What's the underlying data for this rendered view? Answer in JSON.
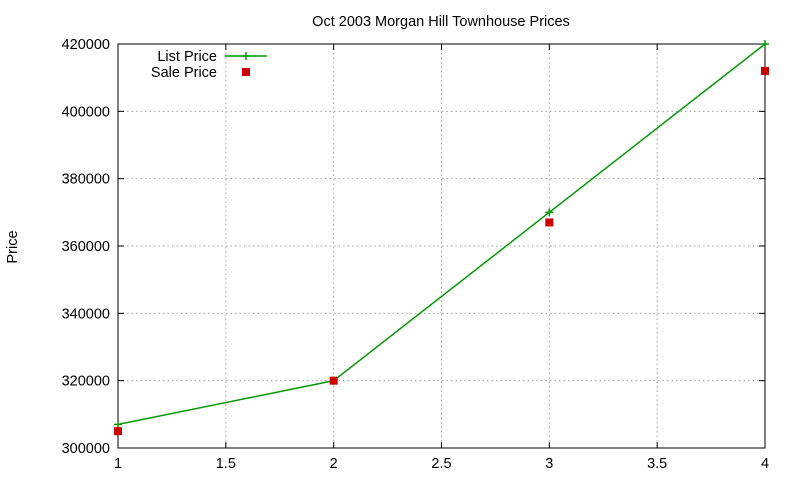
{
  "chart_data": {
    "type": "line",
    "title": "Oct 2003 Morgan Hill Townhouse Prices",
    "xlabel": "",
    "ylabel": "Price",
    "xlim": [
      1,
      4
    ],
    "ylim": [
      300000,
      420000
    ],
    "xticks": [
      1,
      1.5,
      2,
      2.5,
      3,
      3.5,
      4
    ],
    "xtick_labels": [
      "1",
      "1.5",
      "2",
      "2.5",
      "3",
      "3.5",
      "4"
    ],
    "yticks": [
      300000,
      320000,
      340000,
      360000,
      380000,
      400000,
      420000
    ],
    "ytick_labels": [
      "300000",
      "320000",
      "340000",
      "360000",
      "380000",
      "400000",
      "420000"
    ],
    "grid": true,
    "legend_position": "top-left",
    "series": [
      {
        "name": "List Price",
        "style": "line-with-plus-markers",
        "color": "#009900",
        "x": [
          1,
          2,
          3,
          4
        ],
        "y": [
          307000,
          320000,
          370000,
          420000
        ]
      },
      {
        "name": "Sale Price",
        "style": "square-markers",
        "color": "#cc0000",
        "x": [
          1,
          2,
          3,
          4
        ],
        "y": [
          305000,
          320000,
          367000,
          412000
        ]
      }
    ]
  }
}
